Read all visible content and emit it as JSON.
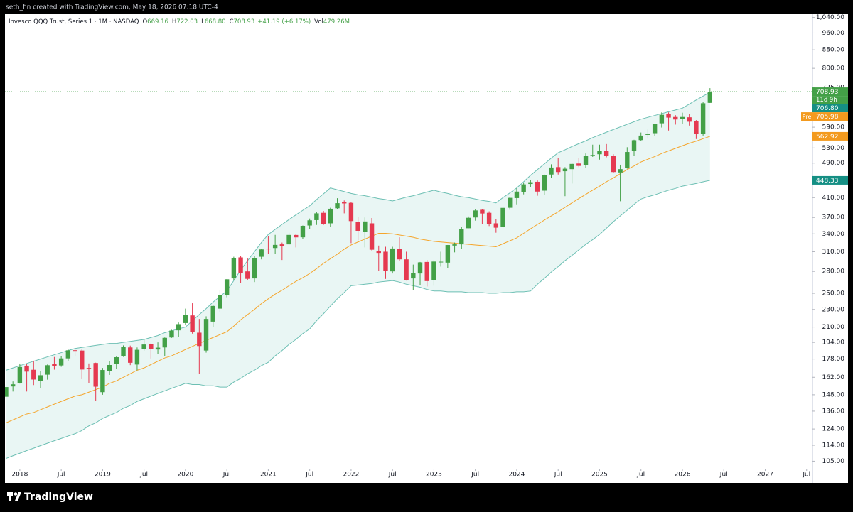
{
  "credit": "seth_fin created with TradingView.com, May 18, 2026 07:18 UTC-4",
  "footer_brand": "TradingView",
  "chart_data": {
    "type": "candlestick",
    "title": "Invesco QQQ Trust, Series 1 · 1M · NASDAQ",
    "quote": [
      {
        "key": "O",
        "value": "669.16"
      },
      {
        "key": "H",
        "value": "722.03"
      },
      {
        "key": "L",
        "value": "668.80"
      },
      {
        "key": "C",
        "value": "708.93"
      }
    ],
    "change": "+41.19 (+6.17%)",
    "volume_key": "Vol",
    "volume": "479.26M",
    "log": true,
    "grid": false,
    "ylim": [
      101,
      1058
    ],
    "yticks": [
      {
        "value": 105,
        "label": "105.00"
      },
      {
        "value": 114,
        "label": "114.00"
      },
      {
        "value": 124,
        "label": "124.00"
      },
      {
        "value": 136,
        "label": "136.00"
      },
      {
        "value": 148,
        "label": "148.00"
      },
      {
        "value": 162,
        "label": "162.00"
      },
      {
        "value": 178,
        "label": "178.00"
      },
      {
        "value": 194,
        "label": "194.00"
      },
      {
        "value": 210,
        "label": "210.00"
      },
      {
        "value": 230,
        "label": "230.00"
      },
      {
        "value": 250,
        "label": "250.00"
      },
      {
        "value": 280,
        "label": "280.00"
      },
      {
        "value": 310,
        "label": "310.00"
      },
      {
        "value": 340,
        "label": "340.00"
      },
      {
        "value": 370,
        "label": "370.00"
      },
      {
        "value": 410,
        "label": "410.00"
      },
      {
        "value": 490,
        "label": "490.00"
      },
      {
        "value": 530,
        "label": "530.00"
      },
      {
        "value": 590,
        "label": "590.00"
      },
      {
        "value": 725,
        "label": "725.00"
      },
      {
        "value": 800,
        "label": "800.00"
      },
      {
        "value": 880,
        "label": "880.00"
      },
      {
        "value": 960,
        "label": "960.00"
      },
      {
        "value": 1040,
        "label": "1,040.00"
      }
    ],
    "categories": [
      null,
      null,
      "2018",
      null,
      null,
      null,
      null,
      null,
      "Jul",
      null,
      null,
      null,
      null,
      null,
      "2019",
      null,
      null,
      null,
      null,
      null,
      "Jul",
      null,
      null,
      null,
      null,
      null,
      "2020",
      null,
      null,
      null,
      null,
      null,
      "Jul",
      null,
      null,
      null,
      null,
      null,
      "2021",
      null,
      null,
      null,
      null,
      null,
      "Jul",
      null,
      null,
      null,
      null,
      null,
      "2022",
      null,
      null,
      null,
      null,
      null,
      "Jul",
      null,
      null,
      null,
      null,
      null,
      "2023",
      null,
      null,
      null,
      null,
      null,
      "Jul",
      null,
      null,
      null,
      null,
      null,
      "2024",
      null,
      null,
      null,
      null,
      null,
      "Jul",
      null,
      null,
      null,
      null,
      null,
      "2025",
      null,
      null,
      null,
      null,
      null,
      "Jul",
      null,
      null,
      null,
      null,
      null,
      "2026",
      null,
      null,
      null,
      null,
      null,
      "Jul",
      null,
      null,
      null,
      null,
      null,
      "2027",
      null,
      null,
      null,
      null,
      null,
      "Jul"
    ],
    "candles": {
      "up_color": "#43a047",
      "down_color": "#e53950",
      "open": [
        146.5,
        154.5,
        157.4,
        172.0,
        168.4,
        158.7,
        164.2,
        173.3,
        172.2,
        178.6,
        186.3,
        186.0,
        170.0,
        174.4,
        150.0,
        167.6,
        173.4,
        180.5,
        189.0,
        173.0,
        187.5,
        192.0,
        187.0,
        189.0,
        199.0,
        206.5,
        214.4,
        223.0,
        204.0,
        186.0,
        216.0,
        231.0,
        248.0,
        270.0,
        301.0,
        280.0,
        270.0,
        302.0,
        315.0,
        316.0,
        322.0,
        322.0,
        338.0,
        334.0,
        355.0,
        365.0,
        379.0,
        359.0,
        388.0,
        400.0,
        399.0,
        362.0,
        343.0,
        359.0,
        311.0,
        310.0,
        280.0,
        315.0,
        298.0,
        270.0,
        277.0,
        294.0,
        268.0,
        294.0,
        293.0,
        320.0,
        322.0,
        350.0,
        370.0,
        385.0,
        379.0,
        359.0,
        352.0,
        389.0,
        409,
        422,
        440,
        445,
        425,
        462,
        480,
        470,
        475,
        489,
        485,
        510,
        513,
        521,
        509,
        467,
        478,
        521,
        552,
        567,
        572,
        602,
        632,
        622,
        615,
        621,
        608,
        571,
        669.16,
        null,
        null,
        null,
        null,
        null,
        null,
        null,
        null,
        null,
        null,
        null,
        null,
        null,
        null
      ],
      "high": [
        156,
        158.5,
        173.9,
        173.8,
        176.5,
        167.2,
        173.0,
        179.9,
        180.5,
        187.0,
        187.5,
        187.0,
        174.0,
        174.7,
        170.0,
        176.0,
        181.0,
        191.0,
        190.8,
        189.0,
        196.8,
        193.0,
        194.0,
        199.0,
        207.0,
        215.0,
        231.0,
        237.5,
        219.0,
        222.0,
        235.0,
        254.0,
        269.0,
        302.0,
        303.5,
        300.0,
        303.0,
        315.0,
        336.0,
        338.2,
        325.0,
        342.0,
        340.0,
        355.0,
        368.0,
        380.0,
        382.8,
        389.0,
        408.7,
        404.0,
        401.0,
        371.0,
        370.0,
        369.0,
        320.0,
        318.0,
        318.0,
        334.0,
        310.0,
        290.0,
        294.0,
        297.0,
        297.0,
        310.0,
        321.0,
        325.0,
        352.0,
        372.0,
        387.0,
        386.0,
        382.0,
        367.0,
        392.0,
        411.0,
        430,
        442,
        449,
        448,
        462,
        487,
        503,
        480,
        489,
        504,
        515,
        539,
        539,
        540.8,
        513,
        486,
        532,
        553,
        574,
        583,
        601,
        637,
        637,
        628,
        636,
        632,
        612,
        672,
        722.03,
        null,
        null,
        null,
        null,
        null,
        null,
        null,
        null,
        null,
        null,
        null,
        null,
        null,
        null
      ],
      "low": [
        145,
        150.5,
        156.8,
        150.5,
        155.6,
        153.0,
        160.0,
        168.5,
        171.0,
        176.0,
        180.5,
        160.4,
        157.0,
        143.5,
        148.0,
        164.0,
        169.0,
        180.0,
        172.5,
        168.0,
        186.0,
        178.5,
        183.0,
        181.0,
        198.6,
        199.5,
        212.6,
        203.0,
        164.9,
        184.0,
        210.0,
        227.0,
        245.0,
        268.0,
        264.0,
        268.0,
        265.0,
        298.0,
        306.0,
        307.0,
        297.0,
        321.0,
        317.0,
        331.0,
        349.0,
        356.0,
        356.0,
        353.0,
        386.0,
        378.0,
        324.0,
        329.0,
        317.0,
        312.0,
        280.2,
        269.3,
        277.0,
        296.0,
        267.0,
        254.3,
        261.0,
        259.0,
        260.1,
        287.0,
        285.0,
        309.0,
        315.0,
        350.0,
        364.0,
        357.0,
        354.0,
        342.0,
        350.0,
        385.0,
        396,
        417,
        433,
        414,
        416,
        454,
        462,
        413.1,
        441,
        480,
        478,
        506,
        499,
        505,
        465,
        402.4,
        476,
        508,
        549,
        556,
        564,
        589,
        580,
        598,
        600,
        595,
        555,
        565,
        668.8,
        null,
        null,
        null,
        null,
        null,
        null,
        null,
        null,
        null,
        null,
        null,
        null,
        null,
        null
      ],
      "close": [
        154,
        156.2,
        170.8,
        166.8,
        160.1,
        163.7,
        172.4,
        171.7,
        178.6,
        186.2,
        185.8,
        168.6,
        169.3,
        154.3,
        168.2,
        172.6,
        179.7,
        189.5,
        174.6,
        186.7,
        191.9,
        187.5,
        188.8,
        198.6,
        206.2,
        213.2,
        223.9,
        204.8,
        190.4,
        219.0,
        234.2,
        247.6,
        268.8,
        299.7,
        277.8,
        269.4,
        300.0,
        313.7,
        314.1,
        321.1,
        319.1,
        338.1,
        333.9,
        354.4,
        364.6,
        378.0,
        358.0,
        387.1,
        398.4,
        397.9,
        363.2,
        345.4,
        362.5,
        313.2,
        308.1,
        280.3,
        315.2,
        298.0,
        267.3,
        277.8,
        293.4,
        266.3,
        294.6,
        294.4,
        320.9,
        322.0,
        348.4,
        369.4,
        383.7,
        377.7,
        358.3,
        351.0,
        388.8,
        409.5,
        423,
        439,
        444,
        423,
        461,
        479,
        468,
        476,
        488,
        483,
        509,
        511,
        522,
        508,
        468,
        475,
        519,
        551.6,
        565,
        570,
        600.4,
        629,
        620,
        614,
        622,
        607,
        570,
        667.74,
        708.93,
        null,
        null,
        null,
        null,
        null,
        null,
        null,
        null,
        null,
        null,
        null,
        null,
        null,
        null
      ]
    },
    "band_fill": "#e9f6f4",
    "bands": [
      {
        "color": "#6cbfb3",
        "values": [
          168,
          170,
          172,
          174,
          176,
          178,
          180,
          182,
          184,
          186,
          188,
          189,
          190,
          191,
          192,
          193,
          193,
          194,
          195,
          196,
          197,
          199,
          201,
          204,
          206,
          208,
          210,
          217,
          224,
          231,
          239,
          246,
          253,
          267,
          282,
          296,
          310,
          325,
          339,
          348,
          357,
          366,
          375,
          384,
          393,
          406,
          418,
          431,
          427,
          423,
          419,
          416,
          414,
          411,
          408,
          406,
          403,
          407,
          411,
          414,
          418,
          422,
          426,
          422,
          419,
          415,
          412,
          410,
          407,
          404,
          402,
          399,
          410,
          420,
          431,
          445,
          460,
          474,
          488,
          503,
          517,
          525,
          534,
          542,
          550,
          559,
          567,
          575,
          583,
          591,
          599,
          607,
          615,
          621,
          627,
          633,
          639,
          645,
          651,
          665,
          679,
          693,
          706.8,
          null,
          null,
          null,
          null,
          null,
          null,
          null,
          null,
          null,
          null,
          null,
          null,
          null,
          null
        ]
      },
      {
        "color": "#f5a52b",
        "values": [
          128,
          130,
          132,
          134,
          135,
          137,
          139,
          141,
          143,
          145,
          147,
          148,
          150,
          152,
          154,
          157,
          159,
          162,
          165,
          168,
          170,
          173,
          176,
          179,
          181,
          184,
          187,
          190,
          193,
          196,
          199,
          202,
          205,
          211,
          218,
          224,
          230,
          237,
          243,
          249,
          254,
          260,
          266,
          271,
          277,
          284,
          292,
          299,
          306,
          314,
          321,
          326,
          331,
          336,
          341,
          341,
          340,
          338,
          336,
          334,
          331,
          329,
          327,
          326,
          325,
          324,
          323,
          322,
          321,
          320,
          319,
          318,
          323,
          328,
          333,
          341,
          349,
          357,
          365,
          373,
          381,
          390,
          399,
          408,
          417,
          426,
          435,
          445,
          454,
          464,
          474,
          483,
          493,
          500,
          507,
          515,
          522,
          529,
          536,
          543,
          549,
          556,
          562.92,
          null,
          null,
          null,
          null,
          null,
          null,
          null,
          null,
          null,
          null,
          null,
          null,
          null,
          null
        ]
      },
      {
        "color": "#6cbfb3",
        "values": [
          106.5,
          108,
          109.4,
          110.9,
          112.3,
          113.8,
          115.2,
          116.7,
          118.1,
          119.6,
          121,
          123,
          126,
          128,
          131,
          133,
          135,
          138,
          140,
          143,
          145,
          147,
          149,
          151,
          153,
          155,
          157,
          156,
          156,
          155,
          155,
          154,
          154,
          158,
          161,
          165,
          168,
          172,
          175,
          181,
          186,
          192,
          197,
          203,
          208,
          217,
          225,
          234,
          243,
          251,
          260,
          261,
          262,
          263,
          265,
          266,
          267,
          265,
          262,
          260,
          258,
          255,
          253,
          253,
          252,
          252,
          252,
          251,
          251,
          251,
          250,
          250,
          251,
          251,
          252,
          252,
          253,
          262,
          270,
          279,
          287,
          296,
          304,
          313,
          322,
          330,
          339,
          350,
          362,
          373,
          384,
          396,
          407,
          412,
          416,
          421,
          426,
          430,
          435,
          438,
          441,
          445,
          448.33,
          null,
          null,
          null,
          null,
          null,
          null,
          null,
          null,
          null,
          null,
          null,
          null,
          null,
          null
        ]
      }
    ],
    "price_labels": [
      {
        "value": 708.93,
        "label": "708.93",
        "note": "11d 9h",
        "color": "#43a047"
      },
      {
        "value": 706.8,
        "label": "706.80",
        "color": "#158f84"
      },
      {
        "value": 705.98,
        "label": "705.98",
        "tag": "Pre",
        "color": "#f39a1e"
      },
      {
        "value": 562.92,
        "label": "562.92",
        "color": "#f39a1e"
      },
      {
        "value": 448.33,
        "label": "448.33",
        "color": "#158f84"
      }
    ]
  }
}
